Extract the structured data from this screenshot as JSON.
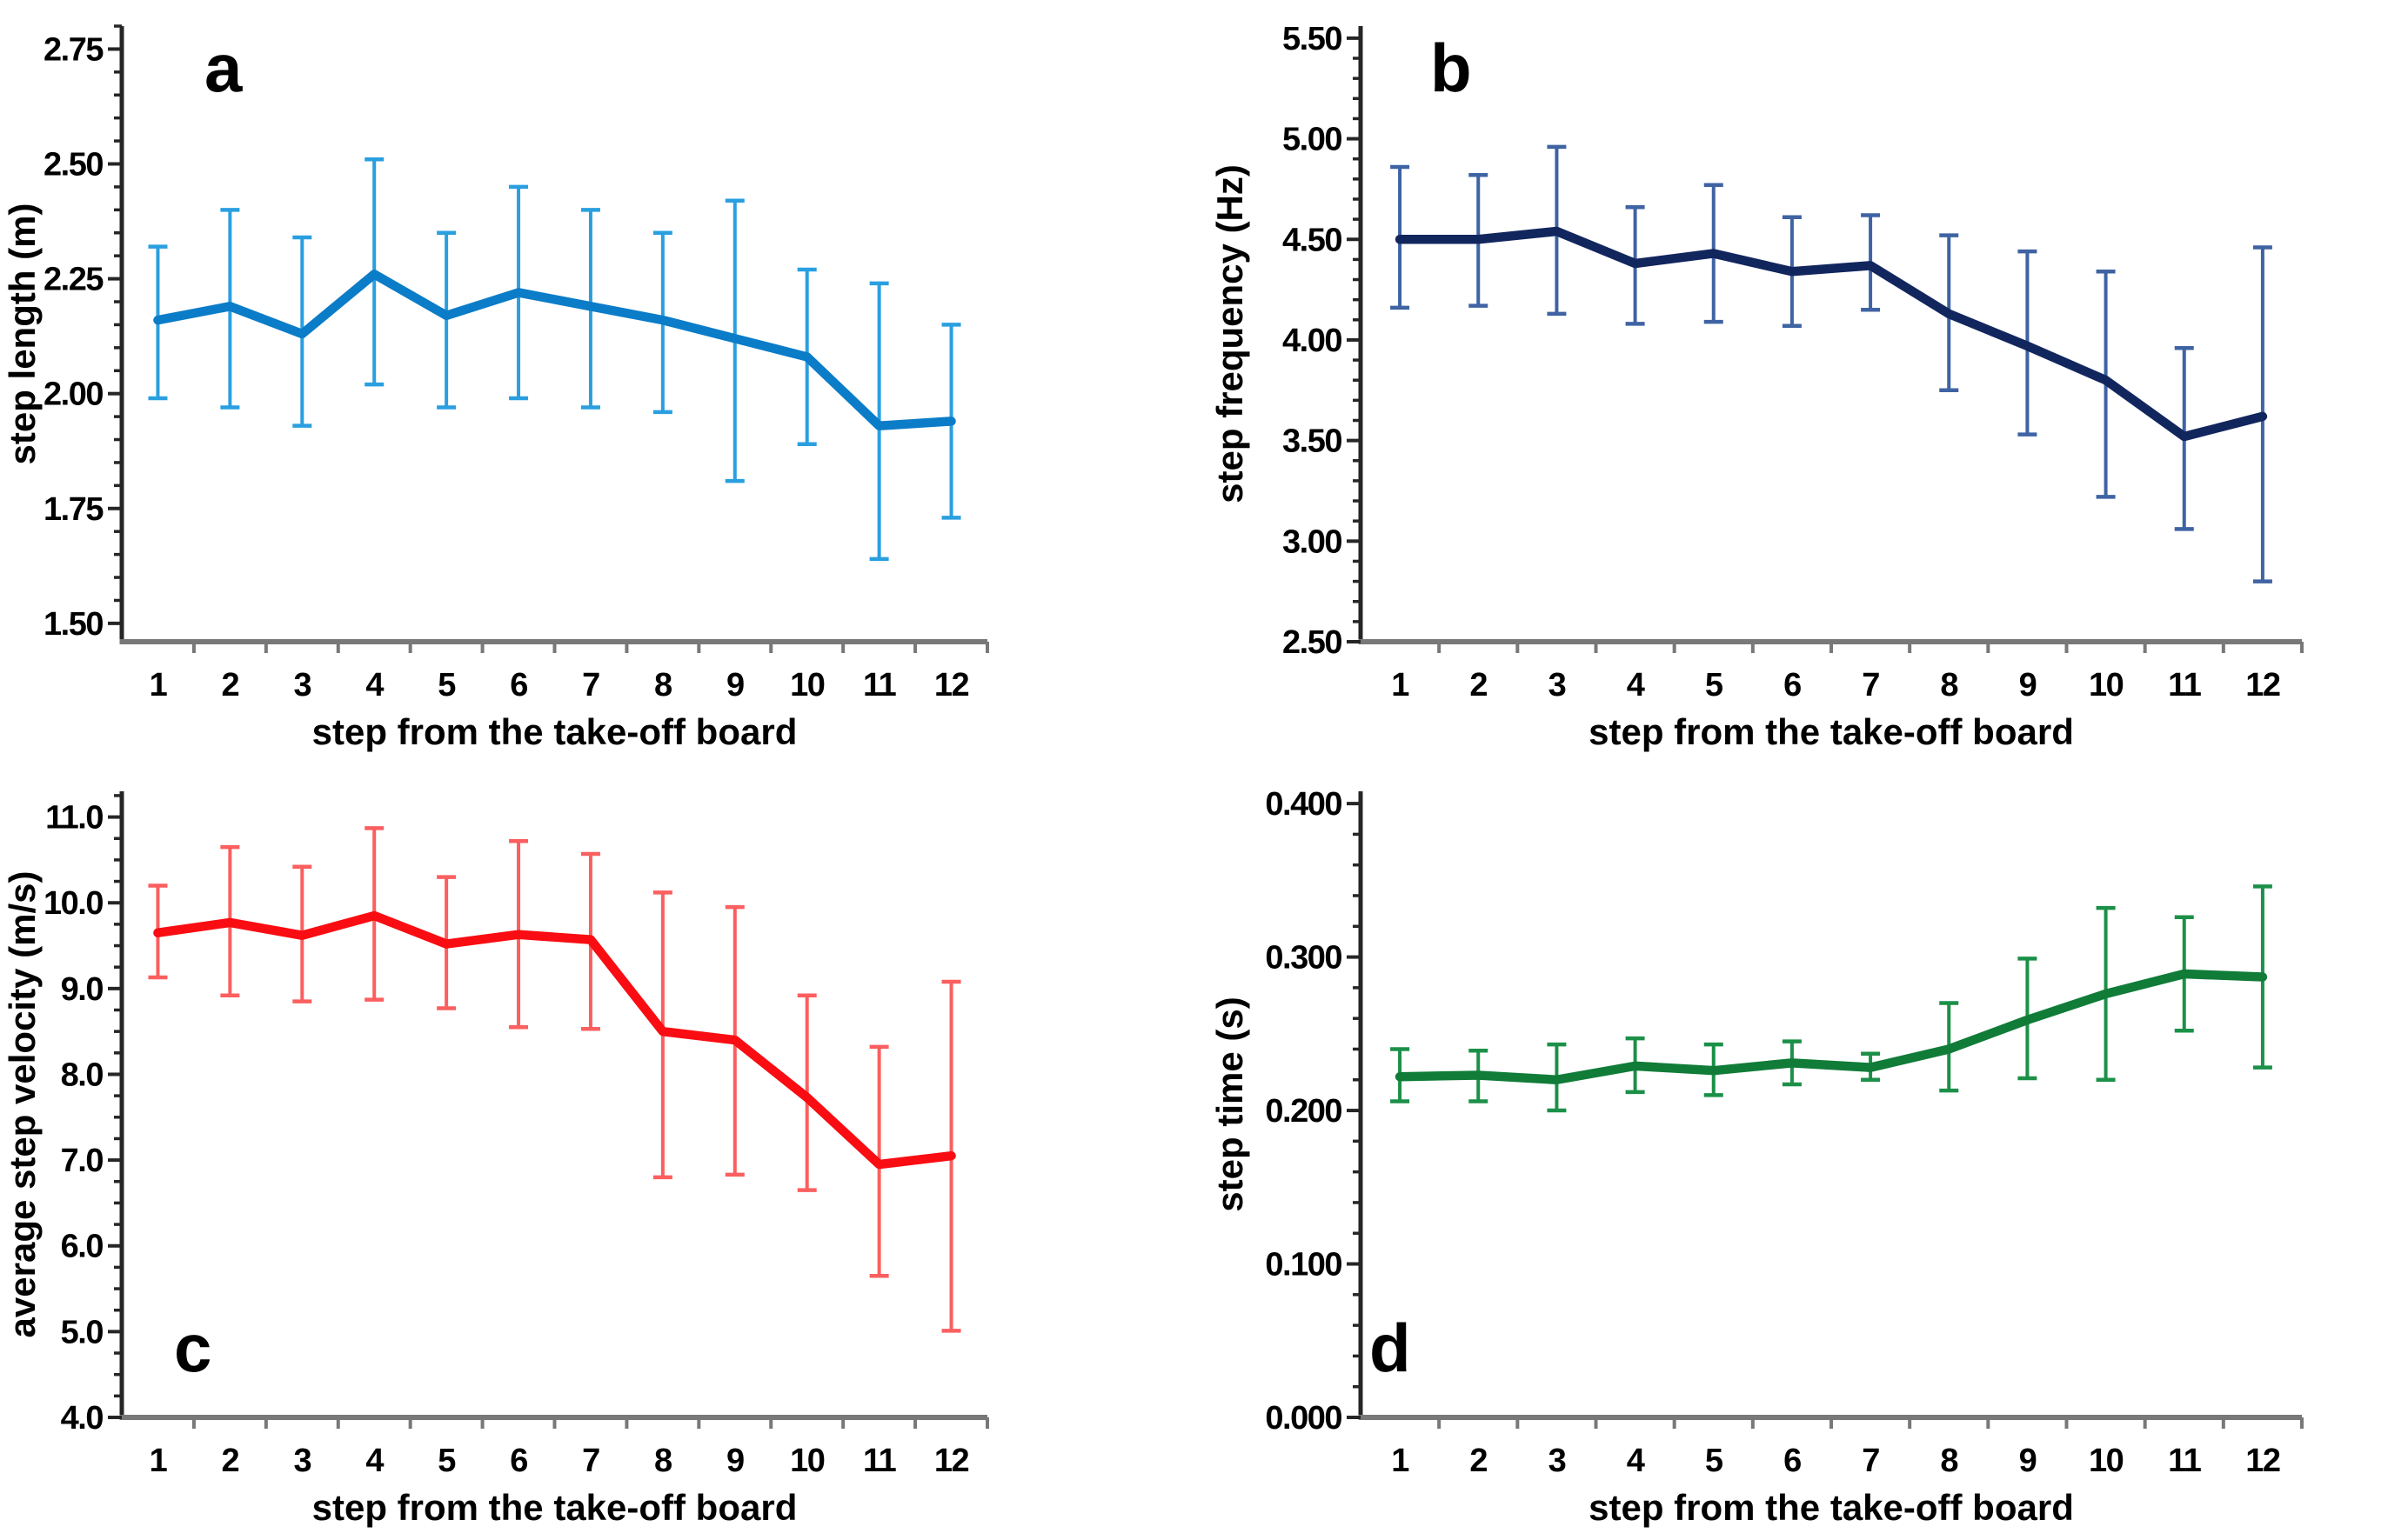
{
  "figure": {
    "background": "#ffffff",
    "xlabel": "step from the take-off board",
    "x_labels": [
      "1",
      "2",
      "3",
      "4",
      "5",
      "6",
      "7",
      "8",
      "9",
      "10",
      "11",
      "12"
    ]
  },
  "chart_data": [
    {
      "type": "line",
      "panel": "a",
      "ylabel": "step length (m)",
      "xlabel": "step from the take-off board",
      "x_labels": [
        "1",
        "2",
        "3",
        "4",
        "5",
        "6",
        "7",
        "8",
        "9",
        "10",
        "11",
        "12"
      ],
      "values": [
        2.16,
        2.19,
        2.13,
        2.26,
        2.17,
        2.22,
        2.19,
        2.16,
        2.12,
        2.08,
        1.93,
        1.94
      ],
      "err_upper": [
        2.32,
        2.4,
        2.34,
        2.51,
        2.35,
        2.45,
        2.4,
        2.35,
        2.42,
        2.27,
        2.24,
        2.15
      ],
      "err_lower": [
        1.99,
        1.97,
        1.93,
        2.02,
        1.97,
        1.99,
        1.97,
        1.96,
        1.81,
        1.89,
        1.64,
        1.73
      ],
      "ylim": [
        1.46,
        2.8
      ],
      "ytick_values": [
        1.5,
        1.75,
        2.0,
        2.25,
        2.5,
        2.75
      ],
      "ytick_labels": [
        "1.50",
        "1.75",
        "2.00",
        "2.25",
        "2.50",
        "2.75"
      ],
      "ytick_minor_step": 0.05,
      "line_color": "#0b7cc8",
      "whisker_color": "#2a9fe0",
      "grid": false,
      "legend": "none"
    },
    {
      "type": "line",
      "panel": "b",
      "ylabel": "step frequency (Hz)",
      "xlabel": "step from the take-off board",
      "x_labels": [
        "1",
        "2",
        "3",
        "4",
        "5",
        "6",
        "7",
        "8",
        "9",
        "10",
        "11",
        "12"
      ],
      "values": [
        4.5,
        4.5,
        4.54,
        4.38,
        4.43,
        4.34,
        4.37,
        4.13,
        3.97,
        3.8,
        3.52,
        3.62
      ],
      "err_upper": [
        4.86,
        4.82,
        4.96,
        4.66,
        4.77,
        4.61,
        4.62,
        4.52,
        4.44,
        4.34,
        3.96,
        4.46
      ],
      "err_lower": [
        4.16,
        4.17,
        4.13,
        4.08,
        4.09,
        4.07,
        4.15,
        3.75,
        3.53,
        3.22,
        3.06,
        2.8
      ],
      "ylim": [
        2.5,
        5.56
      ],
      "ytick_values": [
        2.5,
        3.0,
        3.5,
        4.0,
        4.5,
        5.0,
        5.5
      ],
      "ytick_labels": [
        "2.50",
        "3.00",
        "3.50",
        "4.00",
        "4.50",
        "5.00",
        "5.50"
      ],
      "ytick_minor_step": 0.1,
      "line_color": "#12265e",
      "whisker_color": "#3f63a3",
      "grid": false,
      "legend": "none"
    },
    {
      "type": "line",
      "panel": "c",
      "ylabel": "average step velocity (m/s)",
      "xlabel": "step from the take-off board",
      "x_labels": [
        "1",
        "2",
        "3",
        "4",
        "5",
        "6",
        "7",
        "8",
        "9",
        "10",
        "11",
        "12"
      ],
      "values": [
        9.65,
        9.77,
        9.62,
        9.85,
        9.52,
        9.63,
        9.57,
        8.5,
        8.4,
        7.73,
        6.95,
        7.05
      ],
      "err_upper": [
        10.2,
        10.65,
        10.42,
        10.87,
        10.3,
        10.72,
        10.57,
        10.12,
        9.95,
        8.92,
        8.32,
        9.08
      ],
      "err_lower": [
        9.13,
        8.92,
        8.85,
        8.87,
        8.77,
        8.55,
        8.53,
        6.8,
        6.83,
        6.65,
        5.65,
        5.01
      ],
      "ylim": [
        4.0,
        11.3
      ],
      "ytick_values": [
        4.0,
        5.0,
        6.0,
        7.0,
        8.0,
        9.0,
        10.0,
        11.0
      ],
      "ytick_labels": [
        "4.0",
        "5.0",
        "6.0",
        "7.0",
        "8.0",
        "9.0",
        "10.0",
        "11.0"
      ],
      "ytick_minor_step": 0.25,
      "line_color": "#f90d12",
      "whisker_color": "#fb5f5f",
      "grid": false,
      "legend": "none"
    },
    {
      "type": "line",
      "panel": "d",
      "ylabel": "step time (s)",
      "xlabel": "step from the take-off board",
      "x_labels": [
        "1",
        "2",
        "3",
        "4",
        "5",
        "6",
        "7",
        "8",
        "9",
        "10",
        "11",
        "12"
      ],
      "values": [
        0.222,
        0.223,
        0.22,
        0.229,
        0.226,
        0.231,
        0.228,
        0.24,
        0.259,
        0.276,
        0.289,
        0.287
      ],
      "err_upper": [
        0.24,
        0.239,
        0.243,
        0.247,
        0.243,
        0.245,
        0.237,
        0.27,
        0.299,
        0.332,
        0.326,
        0.346
      ],
      "err_lower": [
        0.206,
        0.206,
        0.2,
        0.212,
        0.21,
        0.217,
        0.22,
        0.213,
        0.221,
        0.22,
        0.252,
        0.228
      ],
      "ylim": [
        0.0,
        0.408
      ],
      "ytick_values": [
        0.0,
        0.1,
        0.2,
        0.3,
        0.4
      ],
      "ytick_labels": [
        "0.000",
        "0.100",
        "0.200",
        "0.300",
        "0.400"
      ],
      "ytick_minor_step": 0.02,
      "line_color": "#107c38",
      "whisker_color": "#1c9048",
      "grid": false,
      "legend": "none"
    }
  ]
}
